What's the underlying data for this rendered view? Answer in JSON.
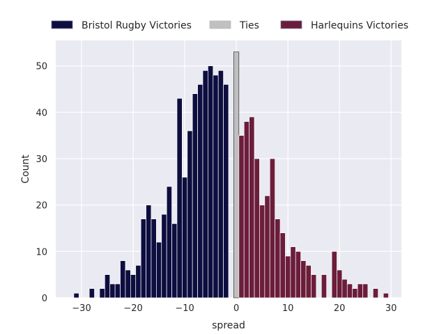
{
  "chart_data": {
    "type": "bar",
    "xlabel": "spread",
    "ylabel": "Count",
    "xlim": [
      -35,
      32
    ],
    "ylim": [
      0,
      55.5
    ],
    "xticks": [
      -30,
      -20,
      -10,
      0,
      10,
      20,
      30
    ],
    "yticks": [
      0,
      10,
      20,
      30,
      40,
      50
    ],
    "xtick_labels": [
      "−30",
      "−20",
      "−10",
      "0",
      "10",
      "20",
      "30"
    ],
    "ytick_labels": [
      "0",
      "10",
      "20",
      "30",
      "40",
      "50"
    ],
    "grid": true,
    "legend_position": "top",
    "bar_width": 1,
    "series": [
      {
        "name": "Bristol Rugby Victories",
        "color": "#0d0d3f",
        "x": [
          -31,
          -28,
          -26,
          -25,
          -24,
          -23,
          -22,
          -21,
          -20,
          -19,
          -18,
          -17,
          -16,
          -15,
          -14,
          -13,
          -12,
          -11,
          -10,
          -9,
          -8,
          -7,
          -6,
          -5,
          -4,
          -3,
          -2,
          -1
        ],
        "values": [
          1,
          2,
          2,
          5,
          3,
          3,
          8,
          6,
          5,
          7,
          17,
          20,
          17,
          12,
          18,
          24,
          16,
          43,
          26,
          36,
          44,
          46,
          49,
          50,
          48,
          49,
          46,
          0
        ]
      },
      {
        "name": "Ties",
        "color": "#c0c0c0",
        "x": [
          0
        ],
        "values": [
          53
        ]
      },
      {
        "name": "Harlequins Victories",
        "color": "#6b1d3a",
        "x": [
          1,
          2,
          3,
          4,
          5,
          6,
          7,
          8,
          9,
          10,
          11,
          12,
          13,
          14,
          15,
          17,
          19,
          20,
          21,
          22,
          23,
          24,
          25,
          27,
          29
        ],
        "values": [
          35,
          38,
          39,
          30,
          20,
          22,
          30,
          17,
          14,
          9,
          11,
          10,
          8,
          7,
          5,
          5,
          10,
          6,
          4,
          3,
          2,
          3,
          3,
          2,
          1
        ]
      }
    ]
  }
}
